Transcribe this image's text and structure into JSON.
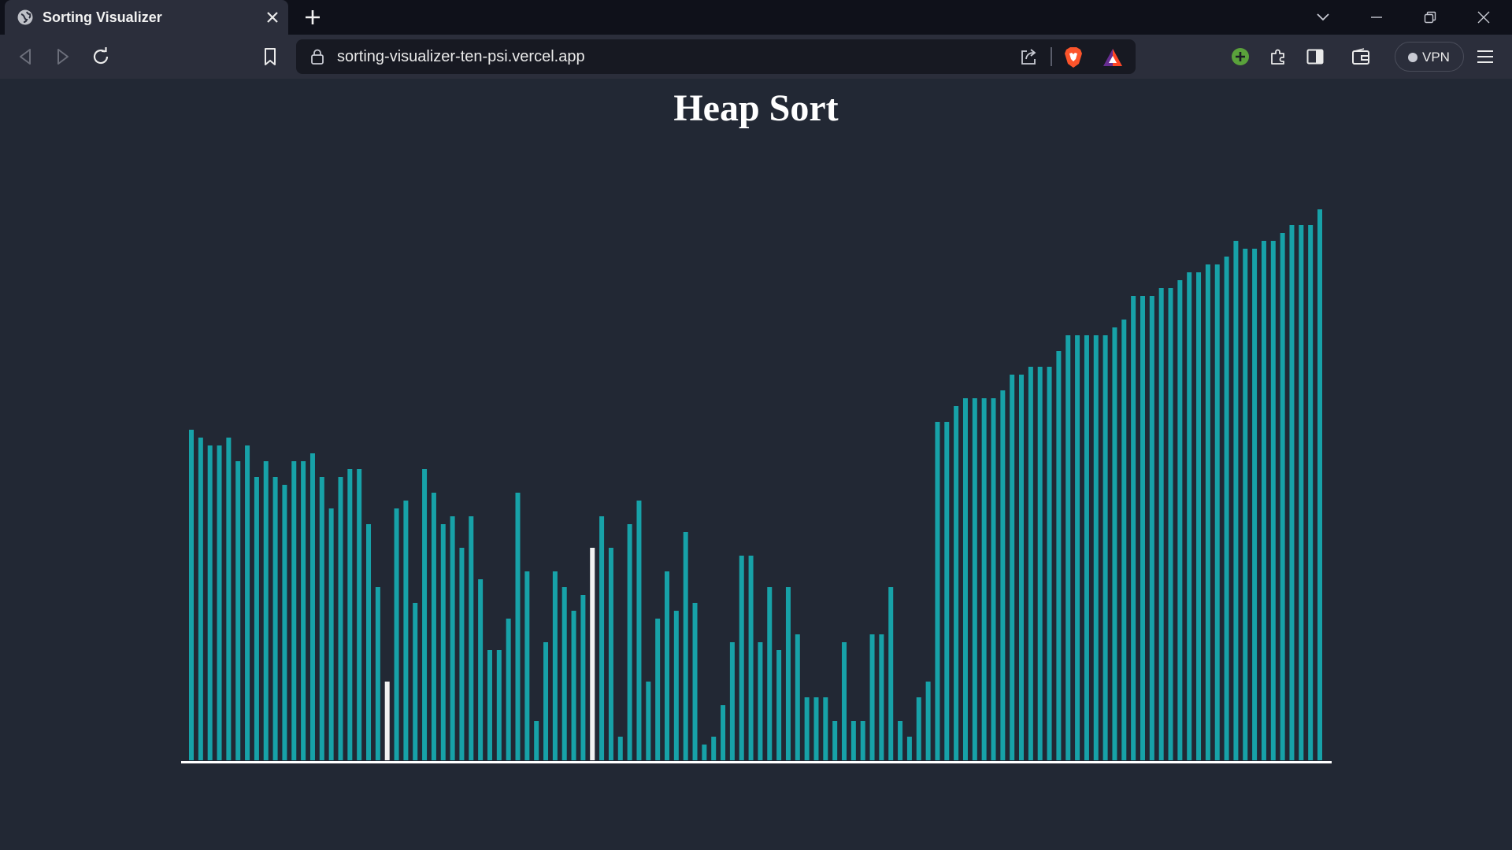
{
  "browser": {
    "tab_title": "Sorting Visualizer",
    "url": "sorting-visualizer-ten-psi.vercel.app",
    "vpn_label": "VPN"
  },
  "page": {
    "title": "Heap Sort"
  },
  "colors": {
    "bar": "#17a2a8",
    "bar_active": "#f1f1f1",
    "background": "#222834",
    "baseline": "#ffffff"
  },
  "chart_data": {
    "type": "bar",
    "values": [
      420,
      410,
      400,
      400,
      410,
      380,
      400,
      360,
      380,
      360,
      350,
      380,
      380,
      390,
      360,
      320,
      360,
      370,
      370,
      300,
      220,
      100,
      320,
      330,
      200,
      370,
      340,
      300,
      310,
      270,
      310,
      230,
      140,
      140,
      180,
      340,
      240,
      50,
      150,
      240,
      220,
      190,
      210,
      270,
      310,
      270,
      30,
      300,
      330,
      100,
      180,
      240,
      190,
      290,
      200,
      20,
      30,
      70,
      150,
      260,
      260,
      150,
      220,
      140,
      220,
      160,
      80,
      80,
      80,
      50,
      150,
      50,
      50,
      160,
      160,
      220,
      50,
      30,
      80,
      100,
      430,
      430,
      450,
      460,
      460,
      460,
      460,
      470,
      490,
      490,
      500,
      500,
      500,
      520,
      540,
      540,
      540,
      540,
      540,
      550,
      560,
      590,
      590,
      590,
      600,
      600,
      610,
      620,
      620,
      630,
      630,
      640,
      660,
      650,
      650,
      660,
      660,
      670,
      680,
      680,
      680,
      700
    ],
    "active_indices": [
      21,
      43
    ]
  }
}
